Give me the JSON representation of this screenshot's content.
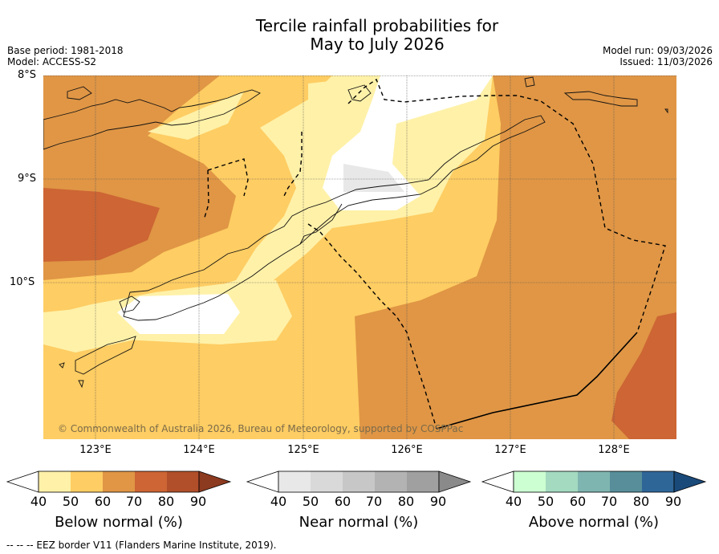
{
  "title": {
    "line1": "Tercile rainfall probabilities for",
    "line2": "May to July 2026"
  },
  "meta": {
    "base_period": "Base period: 1981-2018",
    "model": "Model: ACCESS-S2",
    "model_run": "Model run: 09/03/2026",
    "issued": "Issued: 11/03/2026"
  },
  "map": {
    "lat_labels": [
      "8°S",
      "9°S",
      "10°S"
    ],
    "lon_labels": [
      "123°E",
      "124°E",
      "125°E",
      "126°E",
      "127°E",
      "128°E"
    ],
    "copyright": "© Commonwealth of Australia 2026, Bureau of Meteorology, supported by COSPPac"
  },
  "legends": [
    {
      "title": "Below normal (%)",
      "ticks": [
        "40",
        "50",
        "60",
        "70",
        "80",
        "90"
      ],
      "colors": [
        "#ffffff",
        "#fff1a8",
        "#fecd63",
        "#e09645",
        "#cd6534",
        "#b04f2a",
        "#8c3a20"
      ]
    },
    {
      "title": "Near normal (%)",
      "ticks": [
        "40",
        "50",
        "60",
        "70",
        "80",
        "90"
      ],
      "colors": [
        "#ffffff",
        "#e8e8e8",
        "#d9d9d9",
        "#c7c7c7",
        "#b3b3b3",
        "#a0a0a0",
        "#8a8a8a"
      ]
    },
    {
      "title": "Above normal (%)",
      "ticks": [
        "40",
        "50",
        "60",
        "70",
        "80",
        "90"
      ],
      "colors": [
        "#ffffff",
        "#ccffd2",
        "#a3dac0",
        "#7fb5b0",
        "#578e9a",
        "#2f6698",
        "#1a4a7a"
      ]
    }
  ],
  "footer": "--  --  -- EEZ border V11 (Flanders Marine Institute, 2019)."
}
